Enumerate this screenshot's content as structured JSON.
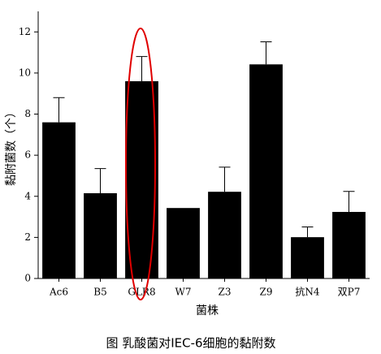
{
  "chart_data": {
    "type": "bar",
    "title": "图 乳酸菌对IEC-6细胞的黏附数",
    "x_label": "菌株",
    "y_label": "黏附菌数（个）",
    "categories": [
      "Ac6",
      "B5",
      "GLR8",
      "W7",
      "Z3",
      "Z9",
      "抗N4",
      "双P7"
    ],
    "values": [
      7.6,
      4.15,
      9.6,
      3.43,
      4.22,
      10.42,
      2.01,
      3.24
    ],
    "errors": [
      1.2,
      1.2,
      1.2,
      null,
      1.2,
      1.1,
      0.5,
      1.0
    ],
    "color": "#000000",
    "ylim": [
      0,
      13
    ],
    "yticks": [
      0,
      2,
      4,
      6,
      8,
      10,
      12
    ],
    "grid": false
  }
}
